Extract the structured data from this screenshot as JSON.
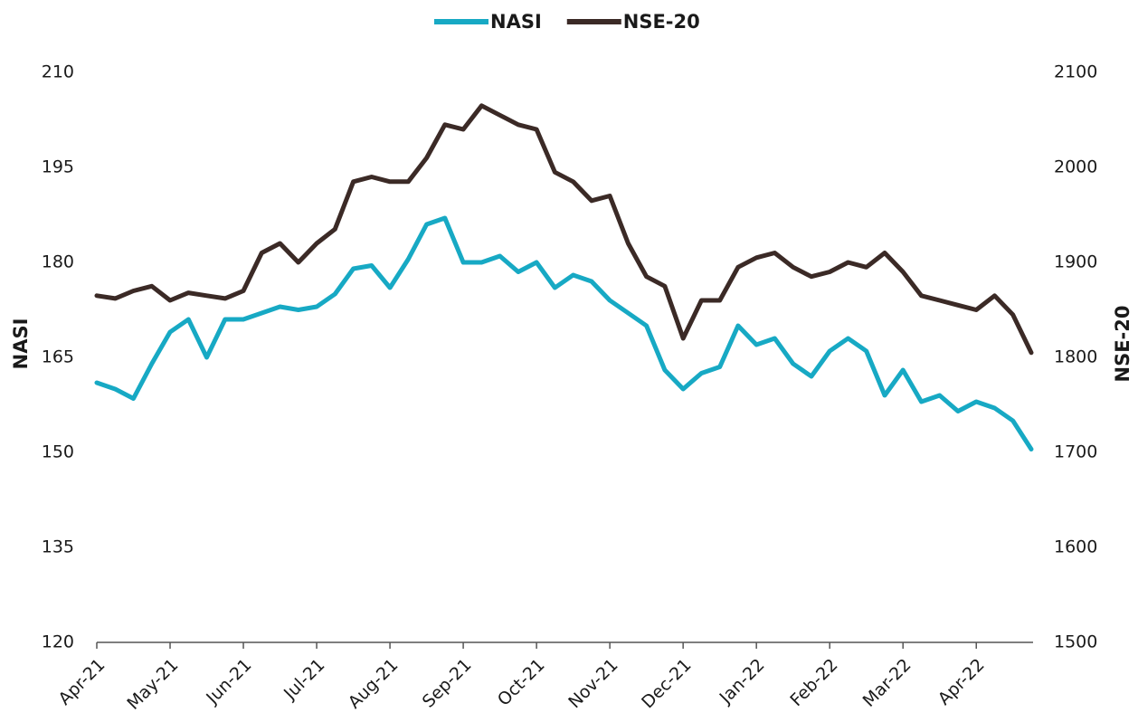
{
  "chart_data": {
    "type": "line",
    "categories": [
      "Apr-21",
      null,
      null,
      null,
      "May-21",
      null,
      null,
      null,
      "Jun-21",
      null,
      null,
      null,
      "Jul-21",
      null,
      null,
      null,
      "Aug-21",
      null,
      null,
      null,
      "Sep-21",
      null,
      null,
      null,
      "Oct-21",
      null,
      null,
      null,
      "Nov-21",
      null,
      null,
      null,
      "Dec-21",
      null,
      null,
      null,
      "Jan-22",
      null,
      null,
      null,
      "Feb-22",
      null,
      null,
      null,
      "Mar-22",
      null,
      null,
      null,
      "Apr-22",
      null,
      null,
      null
    ],
    "series": [
      {
        "name": "NASI",
        "color": "#17a9c4",
        "axis": "y",
        "values": [
          161,
          160,
          158.5,
          164,
          169,
          171,
          165,
          171,
          171,
          172,
          173,
          172.5,
          173,
          175,
          179,
          179.5,
          176,
          180.5,
          186,
          187,
          180,
          180,
          181,
          178.5,
          180,
          176,
          178,
          177,
          174,
          172,
          170,
          163,
          160,
          162.5,
          163.5,
          170,
          167,
          168,
          164,
          162,
          166,
          168,
          166,
          159,
          163,
          158,
          159,
          156.5,
          158,
          157,
          155,
          150.5
        ]
      },
      {
        "name": "NSE-20",
        "color": "#3b2a26",
        "axis": "y2",
        "values": [
          1865,
          1862,
          1870,
          1875,
          1860,
          1868,
          1865,
          1862,
          1870,
          1910,
          1920,
          1900,
          1920,
          1935,
          1985,
          1990,
          1985,
          1985,
          2010,
          2045,
          2040,
          2065,
          2055,
          2045,
          2040,
          1995,
          1985,
          1965,
          1970,
          1920,
          1885,
          1875,
          1820,
          1860,
          1860,
          1895,
          1905,
          1910,
          1895,
          1885,
          1890,
          1900,
          1895,
          1910,
          1890,
          1865,
          1860,
          1855,
          1850,
          1865,
          1845,
          1805
        ]
      }
    ],
    "ylabel": "NASI",
    "y2label": "NSE-20",
    "ylim": [
      120,
      210
    ],
    "yticks": [
      120,
      135,
      150,
      165,
      180,
      195,
      210
    ],
    "y2lim": [
      1500,
      2100
    ],
    "y2ticks": [
      1500,
      1600,
      1700,
      1800,
      1900,
      2000,
      2100
    ],
    "legend": "top"
  }
}
